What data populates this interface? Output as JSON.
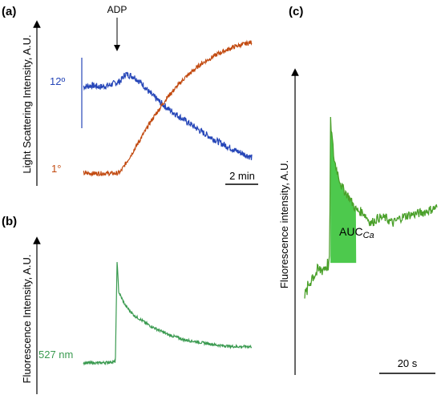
{
  "chart_data": [
    {
      "panel": "(a)",
      "type": "line",
      "ylabel": "Light Scattering Intensity, A.U.",
      "annotation": "ADP",
      "scale_bar": "2 min",
      "series": [
        {
          "name": "12º",
          "color": "#2646b8",
          "x": [
            0,
            0.5,
            1,
            1.5,
            2,
            2.2,
            2.5,
            3,
            3.5,
            4,
            5,
            6,
            7,
            8,
            9,
            10
          ],
          "y": [
            0.62,
            0.63,
            0.62,
            0.63,
            0.65,
            0.66,
            0.71,
            0.69,
            0.64,
            0.57,
            0.47,
            0.39,
            0.31,
            0.24,
            0.18,
            0.13
          ]
        },
        {
          "name": "1°",
          "color": "#c24a10",
          "x": [
            0,
            1,
            2,
            2.2,
            3,
            4,
            5,
            6,
            7,
            8,
            9,
            10
          ],
          "y": [
            0.02,
            0.02,
            0.02,
            0.03,
            0.18,
            0.38,
            0.55,
            0.68,
            0.78,
            0.85,
            0.9,
            0.93
          ]
        }
      ]
    },
    {
      "panel": "(b)",
      "type": "line",
      "ylabel": "Fluorescence Intensity, A.U.",
      "series": [
        {
          "name": "527 nm",
          "color": "#3a9a50",
          "x": [
            0,
            1,
            1.9,
            2,
            2.1,
            2.5,
            3,
            4,
            5,
            6,
            7,
            8,
            9,
            10
          ],
          "y": [
            0.1,
            0.1,
            0.11,
            0.85,
            0.62,
            0.52,
            0.45,
            0.37,
            0.31,
            0.27,
            0.25,
            0.23,
            0.22,
            0.22
          ]
        }
      ]
    },
    {
      "panel": "(c)",
      "type": "area",
      "ylabel": "Fluorescence intensity, A.U.",
      "area_label": "AUC",
      "area_label_sub": "Ca",
      "scale_bar": "20 s",
      "series": [
        {
          "color": "#4aa02a",
          "fill_color": "#4dc94d",
          "x": [
            0,
            1,
            2,
            3,
            3.4,
            3.5,
            4,
            5,
            6,
            7,
            8,
            9,
            10,
            11,
            12,
            13,
            14,
            16,
            18
          ],
          "y": [
            0.3,
            0.38,
            0.4,
            0.42,
            0.43,
            0.97,
            0.82,
            0.72,
            0.68,
            0.63,
            0.62,
            0.58,
            0.6,
            0.6,
            0.58,
            0.6,
            0.61,
            0.62,
            0.64
          ]
        }
      ]
    }
  ]
}
